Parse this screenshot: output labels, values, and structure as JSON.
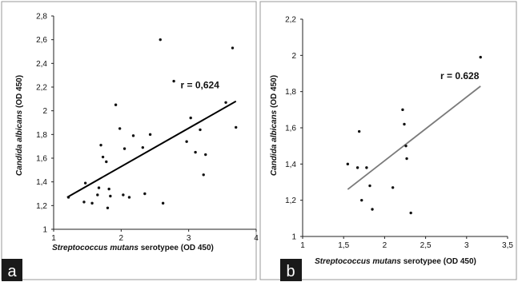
{
  "chart_data": [
    {
      "panel": "a",
      "type": "scatter",
      "title": "",
      "xlabel_italic": "Streptococcus mutans",
      "xlabel_rest": " serotypee (OD 450)",
      "ylabel_italic": "Candida albicans",
      "ylabel_rest": " (OD 450)",
      "xlim": [
        1,
        4
      ],
      "ylim": [
        1,
        2.8
      ],
      "xticks": [
        1,
        2,
        3,
        4
      ],
      "xtick_labels": [
        "1",
        "2",
        "3",
        "4"
      ],
      "yticks": [
        1,
        1.2,
        1.4,
        1.6,
        1.8,
        2,
        2.2,
        2.4,
        2.6,
        2.8
      ],
      "ytick_labels": [
        "1",
        "1,2",
        "1,4",
        "1,6",
        "1,8",
        "2",
        "2,2",
        "2,4",
        "2,6",
        "2,8"
      ],
      "points": [
        [
          1.22,
          1.27
        ],
        [
          1.45,
          1.23
        ],
        [
          1.47,
          1.39
        ],
        [
          1.57,
          1.22
        ],
        [
          1.65,
          1.29
        ],
        [
          1.67,
          1.35
        ],
        [
          1.7,
          1.71
        ],
        [
          1.73,
          1.61
        ],
        [
          1.78,
          1.57
        ],
        [
          1.8,
          1.18
        ],
        [
          1.82,
          1.34
        ],
        [
          1.84,
          1.28
        ],
        [
          1.92,
          2.05
        ],
        [
          1.98,
          1.85
        ],
        [
          2.03,
          1.29
        ],
        [
          2.05,
          1.68
        ],
        [
          2.12,
          1.27
        ],
        [
          2.18,
          1.79
        ],
        [
          2.32,
          1.69
        ],
        [
          2.35,
          1.3
        ],
        [
          2.43,
          1.8
        ],
        [
          2.58,
          2.6
        ],
        [
          2.62,
          1.22
        ],
        [
          2.78,
          2.25
        ],
        [
          2.97,
          1.74
        ],
        [
          3.03,
          1.94
        ],
        [
          3.1,
          1.65
        ],
        [
          3.17,
          1.84
        ],
        [
          3.22,
          1.46
        ],
        [
          3.25,
          1.63
        ],
        [
          3.55,
          2.07
        ],
        [
          3.65,
          2.53
        ],
        [
          3.7,
          1.86
        ]
      ],
      "regression": {
        "x": [
          1.2,
          3.7
        ],
        "y": [
          1.27,
          2.08
        ]
      },
      "annotation": "r = 0,624",
      "annotation_at": [
        2.88,
        2.19
      ],
      "grid": false,
      "legend": "none"
    },
    {
      "panel": "b",
      "type": "scatter",
      "title": "",
      "xlabel_italic": "Streptococcus mutans",
      "xlabel_rest": " serotypee (OD 450)",
      "ylabel_italic": "Candida albicans",
      "ylabel_rest": " (OD 450)",
      "xlim": [
        1,
        3.5
      ],
      "ylim": [
        1,
        2.2
      ],
      "xticks": [
        1,
        1.5,
        2,
        2.5,
        3,
        3.5
      ],
      "xtick_labels": [
        "1",
        "1,5",
        "2",
        "2,5",
        "3",
        "3,5"
      ],
      "yticks": [
        1,
        1.2,
        1.4,
        1.6,
        1.8,
        2,
        2.2
      ],
      "ytick_labels": [
        "1",
        "1,2",
        "1,4",
        "1,6",
        "1,8",
        "2",
        "2,2"
      ],
      "points": [
        [
          1.55,
          1.4
        ],
        [
          1.67,
          1.38
        ],
        [
          1.69,
          1.58
        ],
        [
          1.72,
          1.2
        ],
        [
          1.78,
          1.38
        ],
        [
          1.82,
          1.28
        ],
        [
          1.85,
          1.15
        ],
        [
          2.1,
          1.27
        ],
        [
          2.22,
          1.7
        ],
        [
          2.24,
          1.62
        ],
        [
          2.26,
          1.5
        ],
        [
          2.27,
          1.43
        ],
        [
          2.32,
          1.13
        ],
        [
          3.17,
          1.99
        ]
      ],
      "regression": {
        "x": [
          1.55,
          3.17
        ],
        "y": [
          1.26,
          1.83
        ]
      },
      "annotation": "r = 0.628",
      "annotation_at": [
        2.68,
        1.87
      ],
      "grid": false,
      "legend": "none"
    }
  ],
  "panel_labels": [
    "a",
    "b"
  ],
  "colors": {
    "point": "#111111",
    "line_a": "#000000",
    "line_b": "#7a7a7a",
    "frame": "#9a9a9a",
    "label_box": "#1a1a1a"
  }
}
